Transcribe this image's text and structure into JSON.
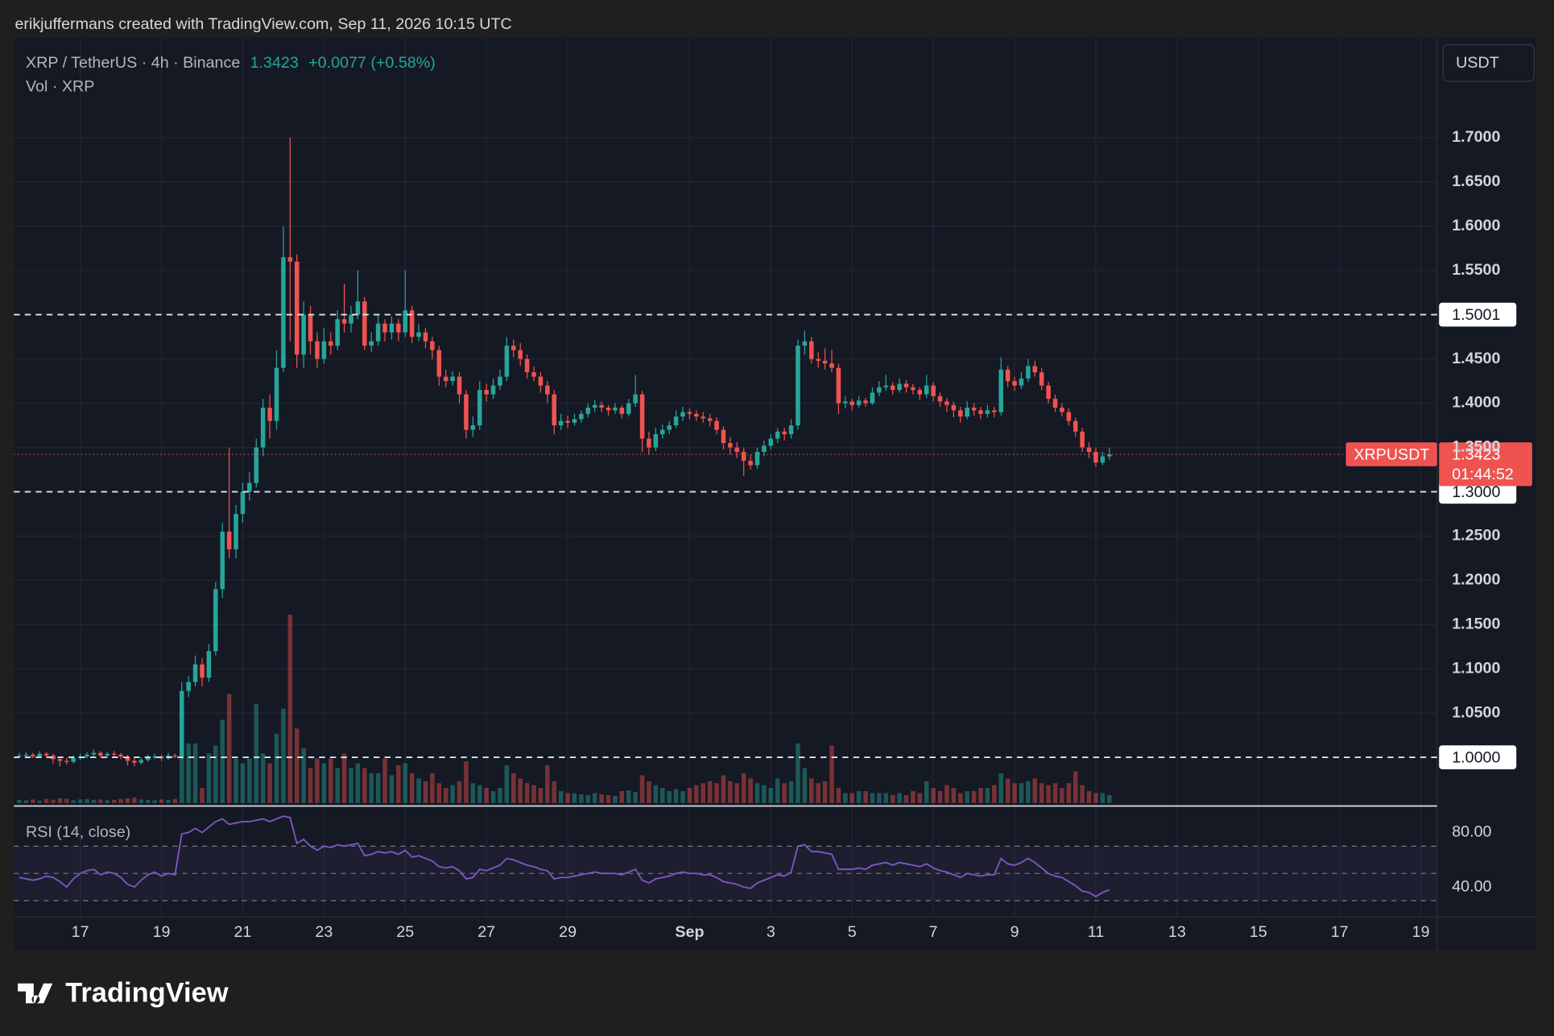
{
  "header": {
    "attribution": "erikjuffermans created with TradingView.com, Sep 11, 2026 10:15 UTC",
    "symbol": "XRP / TetherUS · 4h · Binance",
    "change": "+0.0077 (+0.58%)",
    "volume_label": "Vol · XRP",
    "currency": "USDT",
    "logo": "TradingView"
  },
  "chart_data": {
    "type": "candlestick",
    "symbol": "XRPUSDT",
    "last_price": 1.3423,
    "countdown": "01:44:52",
    "up_color": "#26a69a",
    "down_color": "#ef5350",
    "xlim": [
      -0.8,
      209.4
    ],
    "xticks": [
      {
        "value": 9,
        "label": "17"
      },
      {
        "value": 21,
        "label": "19"
      },
      {
        "value": 33,
        "label": "21"
      },
      {
        "value": 45,
        "label": "23"
      },
      {
        "value": 57,
        "label": "25"
      },
      {
        "value": 69,
        "label": "27"
      },
      {
        "value": 81,
        "label": "29"
      },
      {
        "value": 99,
        "label": "Sep"
      },
      {
        "value": 111,
        "label": "3"
      },
      {
        "value": 123,
        "label": "5"
      },
      {
        "value": 135,
        "label": "7"
      },
      {
        "value": 147,
        "label": "9"
      },
      {
        "value": 159,
        "label": "11"
      },
      {
        "value": 171,
        "label": "13"
      },
      {
        "value": 183,
        "label": "15"
      },
      {
        "value": 195,
        "label": "17"
      },
      {
        "value": 207,
        "label": "19"
      }
    ],
    "ylim": [
      0.945,
      1.813
    ],
    "yticks": [
      {
        "value": 1.05,
        "label": "1.0500"
      },
      {
        "value": 1.1,
        "label": "1.1000"
      },
      {
        "value": 1.15,
        "label": "1.1500"
      },
      {
        "value": 1.2,
        "label": "1.2000"
      },
      {
        "value": 1.25,
        "label": "1.2500"
      },
      {
        "value": 1.35,
        "label": "1.3500"
      },
      {
        "value": 1.4,
        "label": "1.4000"
      },
      {
        "value": 1.45,
        "label": "1.4500"
      },
      {
        "value": 1.55,
        "label": "1.5500"
      },
      {
        "value": 1.6,
        "label": "1.6000"
      },
      {
        "value": 1.65,
        "label": "1.6500"
      },
      {
        "value": 1.7,
        "label": "1.7000"
      }
    ],
    "levels": [
      1.5001,
      {
        "value": 1.3,
        "label": "1.3000"
      },
      {
        "value": 1.0,
        "label": "1.0000"
      }
    ],
    "ohlc": [
      [
        1.001,
        1.005,
        0.999,
        1.002
      ],
      [
        1.002,
        1.006,
        1.0,
        1.003
      ],
      [
        1.003,
        1.005,
        0.999,
        1.001
      ],
      [
        1.001,
        1.007,
        1.0,
        1.004
      ],
      [
        1.004,
        1.006,
        1.0,
        1.002
      ],
      [
        1.002,
        1.004,
        0.993,
        0.998
      ],
      [
        0.998,
        1.001,
        0.99,
        0.996
      ],
      [
        0.996,
        0.999,
        0.992,
        0.995
      ],
      [
        0.995,
        1.002,
        0.993,
        0.999
      ],
      [
        0.999,
        1.004,
        0.997,
        1.001
      ],
      [
        1.001,
        1.006,
        0.999,
        1.003
      ],
      [
        1.003,
        1.009,
        1.001,
        1.005
      ],
      [
        1.005,
        1.007,
        1.0,
        1.002
      ],
      [
        1.002,
        1.006,
        1.0,
        1.004
      ],
      [
        1.004,
        1.007,
        1.001,
        1.003
      ],
      [
        1.003,
        1.005,
        0.998,
        1.001
      ],
      [
        1.001,
        1.003,
        0.991,
        0.996
      ],
      [
        0.996,
        0.999,
        0.99,
        0.994
      ],
      [
        0.994,
        1.0,
        0.992,
        0.997
      ],
      [
        0.997,
        1.003,
        0.995,
        1.0
      ],
      [
        1.0,
        1.004,
        0.998,
        1.001
      ],
      [
        1.001,
        1.003,
        0.996,
        0.999
      ],
      [
        0.999,
        1.005,
        0.997,
        1.002
      ],
      [
        1.002,
        1.004,
        0.999,
        1.001
      ],
      [
        1.001,
        1.085,
        0.998,
        1.075
      ],
      [
        1.075,
        1.092,
        1.068,
        1.085
      ],
      [
        1.085,
        1.115,
        1.08,
        1.105
      ],
      [
        1.105,
        1.112,
        1.08,
        1.09
      ],
      [
        1.09,
        1.128,
        1.085,
        1.12
      ],
      [
        1.12,
        1.198,
        1.115,
        1.19
      ],
      [
        1.19,
        1.265,
        1.18,
        1.255
      ],
      [
        1.255,
        1.35,
        1.225,
        1.235
      ],
      [
        1.235,
        1.285,
        1.225,
        1.275
      ],
      [
        1.275,
        1.31,
        1.265,
        1.3
      ],
      [
        1.3,
        1.322,
        1.29,
        1.31
      ],
      [
        1.31,
        1.36,
        1.305,
        1.35
      ],
      [
        1.35,
        1.405,
        1.34,
        1.395
      ],
      [
        1.395,
        1.41,
        1.36,
        1.38
      ],
      [
        1.38,
        1.46,
        1.37,
        1.44
      ],
      [
        1.44,
        1.6,
        1.435,
        1.565
      ],
      [
        1.565,
        1.7,
        1.47,
        1.56
      ],
      [
        1.56,
        1.568,
        1.44,
        1.455
      ],
      [
        1.455,
        1.515,
        1.44,
        1.5
      ],
      [
        1.5,
        1.51,
        1.455,
        1.47
      ],
      [
        1.47,
        1.48,
        1.44,
        1.45
      ],
      [
        1.45,
        1.485,
        1.445,
        1.47
      ],
      [
        1.47,
        1.48,
        1.455,
        1.465
      ],
      [
        1.465,
        1.505,
        1.46,
        1.495
      ],
      [
        1.495,
        1.535,
        1.48,
        1.49
      ],
      [
        1.49,
        1.51,
        1.48,
        1.5
      ],
      [
        1.5,
        1.55,
        1.495,
        1.515
      ],
      [
        1.515,
        1.52,
        1.46,
        1.465
      ],
      [
        1.465,
        1.48,
        1.458,
        1.47
      ],
      [
        1.47,
        1.5,
        1.465,
        1.49
      ],
      [
        1.49,
        1.495,
        1.47,
        1.48
      ],
      [
        1.48,
        1.498,
        1.472,
        1.49
      ],
      [
        1.49,
        1.495,
        1.47,
        1.48
      ],
      [
        1.48,
        1.55,
        1.475,
        1.505
      ],
      [
        1.505,
        1.51,
        1.468,
        1.475
      ],
      [
        1.475,
        1.49,
        1.47,
        1.48
      ],
      [
        1.48,
        1.485,
        1.462,
        1.47
      ],
      [
        1.47,
        1.475,
        1.45,
        1.46
      ],
      [
        1.46,
        1.465,
        1.42,
        1.43
      ],
      [
        1.43,
        1.438,
        1.418,
        1.425
      ],
      [
        1.425,
        1.436,
        1.42,
        1.43
      ],
      [
        1.43,
        1.435,
        1.4,
        1.41
      ],
      [
        1.41,
        1.415,
        1.36,
        1.37
      ],
      [
        1.37,
        1.385,
        1.362,
        1.375
      ],
      [
        1.375,
        1.425,
        1.37,
        1.415
      ],
      [
        1.415,
        1.422,
        1.402,
        1.41
      ],
      [
        1.41,
        1.428,
        1.405,
        1.42
      ],
      [
        1.42,
        1.438,
        1.415,
        1.43
      ],
      [
        1.43,
        1.475,
        1.425,
        1.465
      ],
      [
        1.465,
        1.472,
        1.452,
        1.46
      ],
      [
        1.46,
        1.468,
        1.442,
        1.45
      ],
      [
        1.45,
        1.455,
        1.428,
        1.435
      ],
      [
        1.435,
        1.442,
        1.425,
        1.43
      ],
      [
        1.43,
        1.435,
        1.412,
        1.42
      ],
      [
        1.42,
        1.425,
        1.4,
        1.41
      ],
      [
        1.41,
        1.415,
        1.365,
        1.375
      ],
      [
        1.375,
        1.388,
        1.37,
        1.38
      ],
      [
        1.38,
        1.386,
        1.372,
        1.378
      ],
      [
        1.378,
        1.388,
        1.375,
        1.382
      ],
      [
        1.382,
        1.392,
        1.378,
        1.388
      ],
      [
        1.388,
        1.4,
        1.384,
        1.395
      ],
      [
        1.395,
        1.404,
        1.39,
        1.398
      ],
      [
        1.398,
        1.402,
        1.39,
        1.395
      ],
      [
        1.395,
        1.398,
        1.386,
        1.392
      ],
      [
        1.392,
        1.4,
        1.388,
        1.395
      ],
      [
        1.395,
        1.398,
        1.383,
        1.388
      ],
      [
        1.388,
        1.405,
        1.385,
        1.4
      ],
      [
        1.4,
        1.432,
        1.396,
        1.41
      ],
      [
        1.41,
        1.414,
        1.345,
        1.36
      ],
      [
        1.36,
        1.368,
        1.342,
        1.35
      ],
      [
        1.35,
        1.372,
        1.346,
        1.365
      ],
      [
        1.365,
        1.376,
        1.36,
        1.37
      ],
      [
        1.37,
        1.38,
        1.365,
        1.375
      ],
      [
        1.375,
        1.392,
        1.372,
        1.385
      ],
      [
        1.385,
        1.396,
        1.38,
        1.39
      ],
      [
        1.39,
        1.394,
        1.382,
        1.388
      ],
      [
        1.388,
        1.392,
        1.38,
        1.385
      ],
      [
        1.385,
        1.39,
        1.378,
        1.383
      ],
      [
        1.383,
        1.388,
        1.374,
        1.38
      ],
      [
        1.38,
        1.384,
        1.365,
        1.37
      ],
      [
        1.37,
        1.374,
        1.348,
        1.355
      ],
      [
        1.355,
        1.362,
        1.342,
        1.35
      ],
      [
        1.35,
        1.356,
        1.338,
        1.345
      ],
      [
        1.345,
        1.35,
        1.318,
        1.335
      ],
      [
        1.335,
        1.342,
        1.325,
        1.33
      ],
      [
        1.33,
        1.35,
        1.326,
        1.345
      ],
      [
        1.345,
        1.358,
        1.34,
        1.352
      ],
      [
        1.352,
        1.365,
        1.348,
        1.36
      ],
      [
        1.36,
        1.372,
        1.355,
        1.368
      ],
      [
        1.368,
        1.372,
        1.358,
        1.365
      ],
      [
        1.365,
        1.382,
        1.36,
        1.375
      ],
      [
        1.375,
        1.472,
        1.37,
        1.465
      ],
      [
        1.465,
        1.482,
        1.455,
        1.47
      ],
      [
        1.47,
        1.475,
        1.445,
        1.45
      ],
      [
        1.45,
        1.458,
        1.44,
        1.448
      ],
      [
        1.448,
        1.462,
        1.438,
        1.445
      ],
      [
        1.445,
        1.46,
        1.435,
        1.44
      ],
      [
        1.44,
        1.445,
        1.388,
        1.4
      ],
      [
        1.4,
        1.408,
        1.394,
        1.402
      ],
      [
        1.402,
        1.405,
        1.392,
        1.398
      ],
      [
        1.398,
        1.408,
        1.395,
        1.403
      ],
      [
        1.403,
        1.406,
        1.396,
        1.4
      ],
      [
        1.4,
        1.418,
        1.398,
        1.412
      ],
      [
        1.412,
        1.425,
        1.408,
        1.418
      ],
      [
        1.418,
        1.432,
        1.414,
        1.42
      ],
      [
        1.42,
        1.424,
        1.41,
        1.415
      ],
      [
        1.415,
        1.428,
        1.412,
        1.422
      ],
      [
        1.422,
        1.426,
        1.412,
        1.418
      ],
      [
        1.418,
        1.422,
        1.41,
        1.415
      ],
      [
        1.415,
        1.418,
        1.404,
        1.41
      ],
      [
        1.41,
        1.432,
        1.406,
        1.42
      ],
      [
        1.42,
        1.424,
        1.402,
        1.408
      ],
      [
        1.408,
        1.412,
        1.396,
        1.402
      ],
      [
        1.402,
        1.406,
        1.39,
        1.398
      ],
      [
        1.398,
        1.402,
        1.384,
        1.392
      ],
      [
        1.392,
        1.396,
        1.378,
        1.385
      ],
      [
        1.385,
        1.402,
        1.382,
        1.395
      ],
      [
        1.395,
        1.4,
        1.386,
        1.392
      ],
      [
        1.392,
        1.396,
        1.382,
        1.388
      ],
      [
        1.388,
        1.398,
        1.384,
        1.392
      ],
      [
        1.392,
        1.396,
        1.384,
        1.39
      ],
      [
        1.39,
        1.452,
        1.386,
        1.438
      ],
      [
        1.438,
        1.442,
        1.418,
        1.425
      ],
      [
        1.425,
        1.43,
        1.414,
        1.42
      ],
      [
        1.42,
        1.435,
        1.416,
        1.428
      ],
      [
        1.428,
        1.45,
        1.424,
        1.442
      ],
      [
        1.442,
        1.448,
        1.43,
        1.435
      ],
      [
        1.435,
        1.44,
        1.415,
        1.42
      ],
      [
        1.42,
        1.424,
        1.4,
        1.405
      ],
      [
        1.405,
        1.41,
        1.39,
        1.395
      ],
      [
        1.395,
        1.4,
        1.385,
        1.39
      ],
      [
        1.39,
        1.394,
        1.375,
        1.38
      ],
      [
        1.38,
        1.384,
        1.362,
        1.368
      ],
      [
        1.368,
        1.372,
        1.345,
        1.35
      ],
      [
        1.35,
        1.356,
        1.338,
        1.345
      ],
      [
        1.345,
        1.35,
        1.328,
        1.333
      ],
      [
        1.333,
        1.345,
        1.33,
        1.34
      ],
      [
        1.34,
        1.35,
        1.336,
        1.3423
      ]
    ],
    "volume": [
      8,
      7,
      9,
      6,
      10,
      8,
      12,
      11,
      7,
      9,
      10,
      8,
      9,
      7,
      8,
      10,
      12,
      14,
      9,
      8,
      7,
      9,
      8,
      10,
      125,
      150,
      150,
      38,
      125,
      145,
      210,
      275,
      112,
      100,
      112,
      250,
      125,
      100,
      175,
      238,
      475,
      188,
      138,
      88,
      112,
      100,
      112,
      88,
      125,
      88,
      100,
      88,
      75,
      75,
      112,
      70,
      95,
      100,
      75,
      62,
      55,
      75,
      50,
      38,
      45,
      55,
      105,
      50,
      45,
      38,
      30,
      38,
      95,
      75,
      62,
      50,
      45,
      38,
      95,
      55,
      30,
      25,
      25,
      22,
      20,
      25,
      22,
      20,
      18,
      30,
      32,
      28,
      70,
      55,
      45,
      38,
      30,
      35,
      30,
      38,
      45,
      50,
      55,
      50,
      70,
      55,
      50,
      75,
      62,
      50,
      45,
      38,
      62,
      50,
      55,
      150,
      88,
      62,
      50,
      55,
      145,
      38,
      25,
      25,
      30,
      30,
      25,
      25,
      25,
      20,
      25,
      20,
      30,
      25,
      55,
      38,
      30,
      45,
      38,
      25,
      30,
      30,
      38,
      38,
      45,
      75,
      62,
      50,
      50,
      55,
      62,
      50,
      45,
      50,
      38,
      50,
      80,
      45,
      30,
      25,
      25,
      20
    ],
    "rsi": {
      "name": "RSI (14, close)",
      "color": "#7e57c2",
      "ylim": [
        18,
        98
      ],
      "yticks": [
        {
          "value": 80,
          "label": "80.00"
        },
        {
          "value": 40,
          "label": "40.00"
        }
      ],
      "levels": [
        70,
        50,
        30
      ],
      "values": [
        47,
        46,
        45,
        46,
        48,
        47,
        44,
        40,
        46,
        50,
        52,
        53,
        49,
        51,
        50,
        47,
        42,
        40,
        45,
        49,
        51,
        48,
        50,
        49,
        79,
        80,
        83,
        80,
        84,
        88,
        90,
        86,
        87,
        88,
        88,
        89,
        90,
        88,
        90,
        92,
        91,
        72,
        75,
        70,
        67,
        70,
        69,
        71,
        70,
        71,
        72,
        63,
        64,
        66,
        65,
        66,
        64,
        67,
        62,
        63,
        61,
        59,
        55,
        54,
        55,
        52,
        46,
        47,
        53,
        52,
        54,
        56,
        61,
        60,
        58,
        56,
        55,
        53,
        52,
        46,
        47,
        47,
        48,
        49,
        50,
        51,
        50,
        50,
        50,
        49,
        51,
        53,
        45,
        43,
        46,
        47,
        48,
        50,
        51,
        50,
        50,
        49,
        49,
        47,
        44,
        43,
        42,
        40,
        39,
        43,
        45,
        47,
        49,
        48,
        51,
        70,
        71,
        66,
        66,
        65,
        64,
        53,
        53,
        53,
        54,
        53,
        56,
        57,
        58,
        56,
        58,
        57,
        56,
        55,
        57,
        54,
        52,
        51,
        49,
        47,
        50,
        49,
        48,
        49,
        49,
        61,
        57,
        56,
        58,
        61,
        58,
        54,
        50,
        48,
        47,
        44,
        41,
        37,
        36,
        33,
        36,
        38
      ]
    }
  }
}
